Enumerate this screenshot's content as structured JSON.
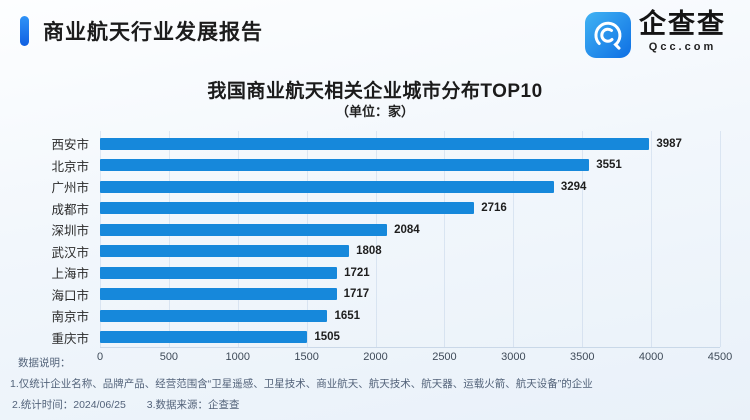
{
  "header": {
    "report_title": "商业航天行业发展报告"
  },
  "logo": {
    "name_cn": "企查查",
    "name_en": "Qcc.com"
  },
  "chart_data": {
    "type": "bar",
    "orientation": "horizontal",
    "title": "我国商业航天相关企业城市分布TOP10",
    "subtitle": "（单位：家）",
    "unit": "家",
    "categories": [
      "西安市",
      "北京市",
      "广州市",
      "成都市",
      "深圳市",
      "武汉市",
      "上海市",
      "海口市",
      "南京市",
      "重庆市"
    ],
    "values": [
      3987,
      3551,
      3294,
      2716,
      2084,
      1808,
      1721,
      1717,
      1651,
      1505
    ],
    "xlim": [
      0,
      4500
    ],
    "xticks": [
      0,
      500,
      1000,
      1500,
      2000,
      2500,
      3000,
      3500,
      4000,
      4500
    ],
    "grid": true,
    "legend_position": "none",
    "bar_color": "#1688db"
  },
  "footer": {
    "label": "数据说明：",
    "note1": "1.仅统计企业名称、品牌产品、经营范围含“卫星遥感、卫星技术、商业航天、航天技术、航天器、运载火箭、航天设备”的企业",
    "note2_time": "2.统计时间：2024/06/25",
    "note2_source": "3.数据来源：企查查"
  },
  "colors": {
    "bar": "#1688db",
    "accent": "#1a73f0",
    "background_bottom": "#e9f1f9"
  }
}
